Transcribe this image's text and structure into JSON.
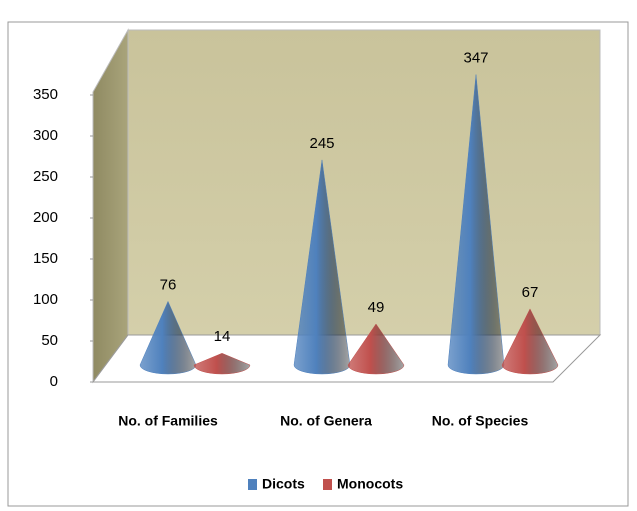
{
  "chart_data": {
    "type": "cone3d",
    "categories": [
      "No. of Families",
      "No. of Genera",
      "No. of Species"
    ],
    "series": [
      {
        "name": "Dicots",
        "color": "#4f81bd",
        "values": [
          76,
          245,
          347
        ]
      },
      {
        "name": "Monocots",
        "color": "#c0504d",
        "values": [
          14,
          49,
          67
        ]
      }
    ],
    "ylim": [
      0,
      350
    ],
    "yticks": [
      0,
      50,
      100,
      150,
      200,
      250,
      300,
      350
    ],
    "legend": "bottom"
  }
}
